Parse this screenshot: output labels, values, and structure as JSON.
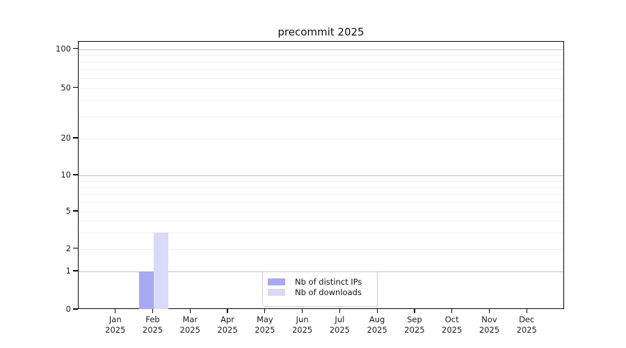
{
  "chart_data": {
    "type": "bar",
    "title": "precommit 2025",
    "categories": [
      "Jan 2025",
      "Feb 2025",
      "Mar 2025",
      "Apr 2025",
      "May 2025",
      "Jun 2025",
      "Jul 2025",
      "Aug 2025",
      "Sep 2025",
      "Oct 2025",
      "Nov 2025",
      "Dec 2025"
    ],
    "series": [
      {
        "name": "Nb of distinct IPs",
        "color": "#a8a8f4",
        "values": [
          0,
          1,
          0,
          0,
          0,
          0,
          0,
          0,
          0,
          0,
          0,
          0
        ]
      },
      {
        "name": "Nb of downloads",
        "color": "#d9d9fa",
        "values": [
          0,
          3,
          0,
          0,
          0,
          0,
          0,
          0,
          0,
          0,
          0,
          0
        ]
      }
    ],
    "yscale": "symlog",
    "yticks": [
      0,
      1,
      2,
      5,
      10,
      20,
      50,
      100
    ],
    "ylim": [
      0,
      110
    ],
    "xlabel": "",
    "ylabel": "",
    "grid": true,
    "legend_position": "lower center",
    "colors": {
      "major_grid": "#c2c2c2",
      "minor_grid": "#f0f0f0",
      "spine": "#000000",
      "text": "#1a1a1a"
    }
  }
}
